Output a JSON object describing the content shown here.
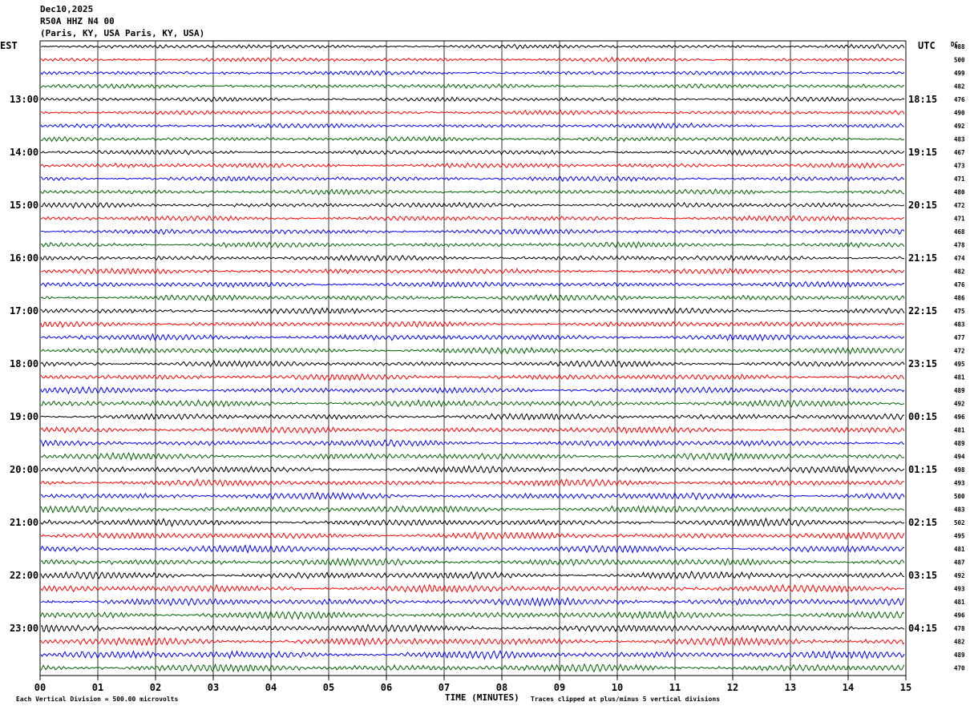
{
  "header": {
    "date": "Dec10,2025",
    "station": "R50A HHZ N4 00",
    "location": "(Paris, KY, USA Paris, KY, USA)"
  },
  "chart_data": {
    "type": "line",
    "title": "",
    "left_axis_title": "EST",
    "right_axis_title": "UTC",
    "dc_title": "DC",
    "xlabel": "TIME (MINUTES)",
    "x_ticks": [
      "00",
      "01",
      "02",
      "03",
      "04",
      "05",
      "06",
      "07",
      "08",
      "09",
      "10",
      "11",
      "12",
      "13",
      "14",
      "15"
    ],
    "xlim": [
      0,
      15
    ],
    "grid": true,
    "trace_colors": [
      "#000000",
      "#ff0000",
      "#0000ff",
      "#006400"
    ],
    "traces_per_hour": 4,
    "hour_labels_left": [
      "13:00",
      "14:00",
      "15:00",
      "16:00",
      "17:00",
      "18:00",
      "19:00",
      "20:00",
      "21:00",
      "22:00",
      "23:00"
    ],
    "hour_labels_right": [
      "18:15",
      "19:15",
      "20:15",
      "21:15",
      "22:15",
      "23:15",
      "00:15",
      "01:15",
      "02:15",
      "03:15",
      "04:15"
    ],
    "first_labeled_trace": 4,
    "trace_count": 48,
    "dc_values": [
      "488",
      "500",
      "499",
      "482",
      "476",
      "490",
      "492",
      "483",
      "467",
      "473",
      "471",
      "480",
      "472",
      "471",
      "468",
      "478",
      "474",
      "482",
      "476",
      "486",
      "475",
      "483",
      "477",
      "472",
      "495",
      "481",
      "489",
      "492",
      "496",
      "481",
      "489",
      "494",
      "498",
      "493",
      "500",
      "483",
      "502",
      "495",
      "481",
      "487",
      "492",
      "493",
      "481",
      "496",
      "478",
      "482",
      "489",
      "470"
    ],
    "footer_left": "Each Vertical Division =  500.00 microvolts",
    "footer_right": "Traces clipped at plus/minus 5 vertical divisions"
  }
}
